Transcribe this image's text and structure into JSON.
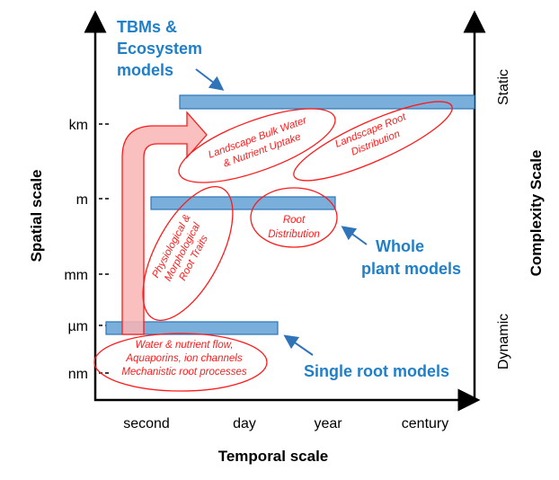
{
  "axes": {
    "y_label": "Spatial scale",
    "x_label": "Temporal scale",
    "right_label": "Complexity Scale",
    "right_top": "Static",
    "right_bottom": "Dynamic",
    "y_ticks": [
      "km",
      "m",
      "mm",
      "µm",
      "nm"
    ],
    "x_ticks": [
      "second",
      "day",
      "year",
      "century"
    ]
  },
  "model_labels": {
    "tbm": [
      "TBMs &",
      "Ecosystem",
      "models"
    ],
    "whole_plant": [
      "Whole",
      "plant models"
    ],
    "single_root": "Single root models"
  },
  "processes": {
    "landscape_bulk": [
      "Landscape Bulk Water",
      "& Nutrient Uptake"
    ],
    "landscape_root": [
      "Landscape Root",
      "Distribution"
    ],
    "physiological": [
      "Physiological &",
      "Morphological",
      "Root Traits"
    ],
    "root_distribution": [
      "Root",
      "Distribution"
    ],
    "water_flow": [
      "Water & nutrient flow,",
      "Aquaporins, ion channels",
      "Mechanistic root processes"
    ]
  },
  "colors": {
    "bar": "#7aafdc",
    "process": "#ff1a1a",
    "model_text": "#1f7fc9",
    "arrow": "#f9b4b4"
  }
}
